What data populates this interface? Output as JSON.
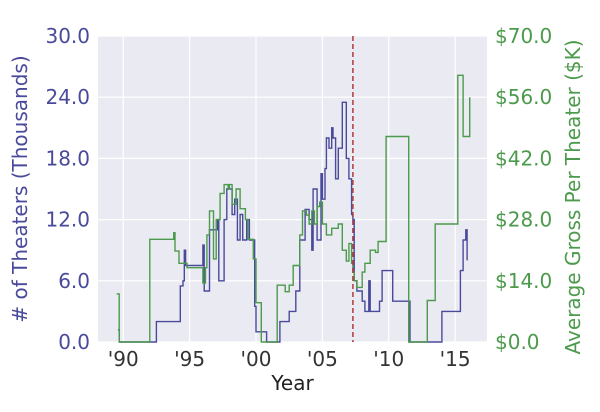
{
  "chart_data": {
    "type": "line",
    "xlabel": "Year",
    "ylabel_left": "# of Theaters (Thousands)",
    "ylabel_right": "Average Gross Per Theater ($K)",
    "x_range": [
      1988.1,
      2017.4
    ],
    "y_left_range": [
      0,
      30
    ],
    "y_right_range": [
      0,
      70
    ],
    "x_ticks": [
      {
        "value": 1990,
        "label": "'90"
      },
      {
        "value": 1995,
        "label": "'95"
      },
      {
        "value": 2000,
        "label": "'00"
      },
      {
        "value": 2005,
        "label": "'05"
      },
      {
        "value": 2010,
        "label": "'10"
      },
      {
        "value": 2015,
        "label": "'15"
      }
    ],
    "y_left_ticks": [
      "0.0",
      "6.0",
      "12.0",
      "18.0",
      "24.0",
      "30.0"
    ],
    "y_right_ticks": [
      "$0.0",
      "$14.0",
      "$28.0",
      "$42.0",
      "$56.0",
      "$70.0"
    ],
    "vline": {
      "x": 2007.3,
      "color": "#b03a3a",
      "style": "dashed"
    },
    "grid": true,
    "background": "#eaeaf2",
    "series": [
      {
        "axis": "left",
        "color": "#4a4a9c",
        "points": [
          [
            1989.6,
            1.2
          ],
          [
            1989.7,
            0
          ],
          [
            1992.4,
            0
          ],
          [
            1992.5,
            2
          ],
          [
            1994.2,
            2
          ],
          [
            1994.3,
            5.5
          ],
          [
            1994.5,
            6
          ],
          [
            1994.6,
            9
          ],
          [
            1994.7,
            7.5
          ],
          [
            1995.9,
            7.5
          ],
          [
            1996.0,
            9.5
          ],
          [
            1996.1,
            5
          ],
          [
            1996.4,
            5
          ],
          [
            1996.5,
            11
          ],
          [
            1997.1,
            12
          ],
          [
            1997.2,
            6
          ],
          [
            1997.6,
            12
          ],
          [
            1997.8,
            15
          ],
          [
            1998.0,
            15
          ],
          [
            1998.2,
            12.5
          ],
          [
            1998.4,
            14
          ],
          [
            1998.6,
            10
          ],
          [
            1998.8,
            12.5
          ],
          [
            1999.0,
            10
          ],
          [
            1999.3,
            12
          ],
          [
            1999.5,
            10
          ],
          [
            1999.8,
            10
          ],
          [
            1999.9,
            3.5
          ],
          [
            2000.0,
            1
          ],
          [
            2000.7,
            1
          ],
          [
            2000.8,
            0
          ],
          [
            2001.7,
            0
          ],
          [
            2001.8,
            2
          ],
          [
            2002.5,
            3
          ],
          [
            2003.0,
            5
          ],
          [
            2003.3,
            10
          ],
          [
            2003.7,
            13
          ],
          [
            2004.0,
            12
          ],
          [
            2004.2,
            9
          ],
          [
            2004.3,
            15
          ],
          [
            2004.6,
            10
          ],
          [
            2004.9,
            16.5
          ],
          [
            2005.0,
            14
          ],
          [
            2005.2,
            17
          ],
          [
            2005.3,
            20
          ],
          [
            2005.5,
            19
          ],
          [
            2005.7,
            21
          ],
          [
            2005.8,
            20
          ],
          [
            2006.0,
            16
          ],
          [
            2006.2,
            19
          ],
          [
            2006.5,
            23.5
          ],
          [
            2006.8,
            18
          ],
          [
            2007.0,
            16
          ],
          [
            2007.2,
            12.5
          ],
          [
            2007.3,
            12
          ],
          [
            2007.4,
            6
          ],
          [
            2007.6,
            5
          ],
          [
            2008.0,
            4
          ],
          [
            2008.2,
            3
          ],
          [
            2008.5,
            6
          ],
          [
            2008.6,
            3
          ],
          [
            2009.2,
            3
          ],
          [
            2009.3,
            4
          ],
          [
            2009.5,
            7
          ],
          [
            2010.2,
            7
          ],
          [
            2010.3,
            4
          ],
          [
            2011.5,
            4
          ],
          [
            2011.6,
            0
          ],
          [
            2013.9,
            0
          ],
          [
            2014.0,
            3
          ],
          [
            2015.3,
            3
          ],
          [
            2015.4,
            7
          ],
          [
            2015.6,
            10
          ],
          [
            2015.8,
            11
          ],
          [
            2015.9,
            8
          ]
        ]
      },
      {
        "axis": "right",
        "color": "#4c9a4c",
        "points": [
          [
            1989.5,
            11
          ],
          [
            1989.7,
            0
          ],
          [
            1991.9,
            0
          ],
          [
            1992.0,
            23.5
          ],
          [
            1993.7,
            23.5
          ],
          [
            1993.8,
            25
          ],
          [
            1993.9,
            20.8
          ],
          [
            1994.2,
            18
          ],
          [
            1994.8,
            17
          ],
          [
            1995.9,
            17
          ],
          [
            1996.0,
            13.5
          ],
          [
            1996.2,
            17
          ],
          [
            1996.3,
            24.5
          ],
          [
            1996.5,
            30
          ],
          [
            1996.8,
            19
          ],
          [
            1997.0,
            28
          ],
          [
            1997.3,
            34
          ],
          [
            1997.6,
            36
          ],
          [
            1997.9,
            35
          ],
          [
            1998.0,
            36
          ],
          [
            1998.2,
            31.5
          ],
          [
            1998.5,
            35
          ],
          [
            1998.8,
            30.5
          ],
          [
            1999.2,
            28
          ],
          [
            1999.4,
            23.5
          ],
          [
            1999.6,
            23.5
          ],
          [
            1999.8,
            19
          ],
          [
            2000.0,
            9
          ],
          [
            2000.4,
            0
          ],
          [
            2001.5,
            0
          ],
          [
            2001.6,
            13
          ],
          [
            2002.2,
            11.5
          ],
          [
            2002.5,
            13
          ],
          [
            2002.8,
            17.5
          ],
          [
            2003.3,
            24.5
          ],
          [
            2003.5,
            30
          ],
          [
            2003.8,
            29
          ],
          [
            2004.0,
            27
          ],
          [
            2004.2,
            30
          ],
          [
            2004.4,
            27
          ],
          [
            2004.6,
            31
          ],
          [
            2004.8,
            32
          ],
          [
            2005.0,
            27
          ],
          [
            2005.3,
            24.5
          ],
          [
            2005.7,
            26
          ],
          [
            2006.2,
            27
          ],
          [
            2006.5,
            21
          ],
          [
            2006.8,
            18.5
          ],
          [
            2007.0,
            22.5
          ],
          [
            2007.2,
            18
          ],
          [
            2007.3,
            16
          ],
          [
            2007.4,
            14
          ],
          [
            2007.6,
            12.5
          ],
          [
            2008.0,
            16
          ],
          [
            2008.2,
            18
          ],
          [
            2008.6,
            21
          ],
          [
            2009.0,
            20.5
          ],
          [
            2009.2,
            23
          ],
          [
            2009.8,
            47
          ],
          [
            2010.3,
            47
          ],
          [
            2011.4,
            47
          ],
          [
            2011.5,
            0
          ],
          [
            2012.8,
            0
          ],
          [
            2012.9,
            9.5
          ],
          [
            2013.5,
            27
          ],
          [
            2014.0,
            27
          ],
          [
            2015.0,
            27
          ],
          [
            2015.2,
            61
          ],
          [
            2015.6,
            47
          ],
          [
            2016.0,
            47
          ],
          [
            2016.1,
            56
          ]
        ]
      }
    ]
  }
}
